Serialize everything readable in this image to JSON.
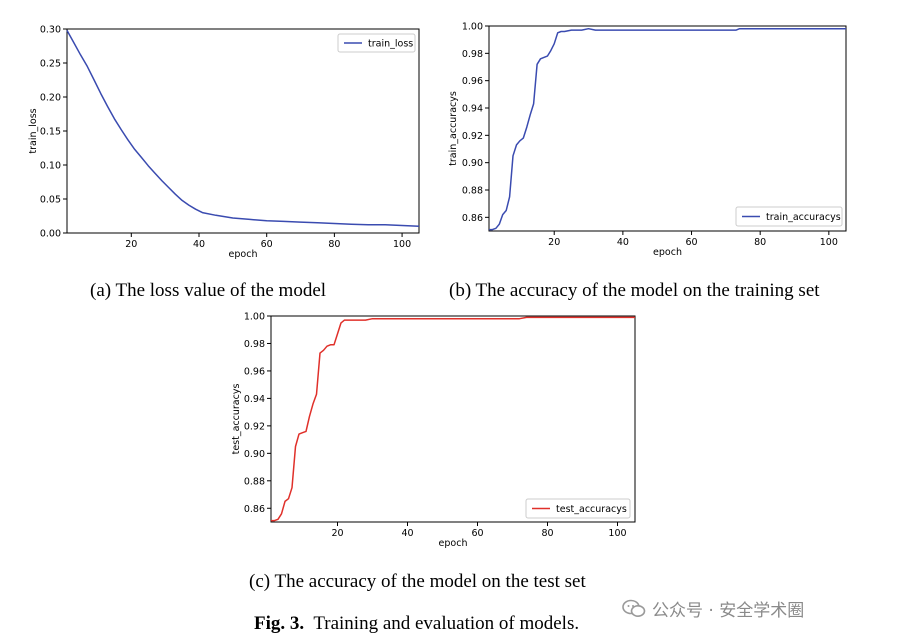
{
  "captions": {
    "a": "(a) The loss value of the model",
    "b": "(b) The accuracy of the model on the training set",
    "c": "(c) The accuracy of the model on the test set"
  },
  "figure_caption": {
    "label": "Fig. 3.",
    "text": "Training and evaluation of models."
  },
  "watermark": {
    "text": "公众号 · 安全学术圈",
    "icon": "wechat-icon"
  },
  "chart_data": [
    {
      "type": "line",
      "xlabel": "epoch",
      "ylabel": "train_loss",
      "xlim": [
        1,
        105
      ],
      "ylim": [
        0,
        0.3
      ],
      "xticks": [
        20,
        40,
        60,
        80,
        100
      ],
      "yticks": [
        0.0,
        0.05,
        0.1,
        0.15,
        0.2,
        0.25,
        0.3
      ],
      "ytick_labels": [
        "0.00",
        "0.05",
        "0.10",
        "0.15",
        "0.20",
        "0.25",
        "0.30"
      ],
      "legend": "top-right",
      "grid": false,
      "series": [
        {
          "name": "train_loss",
          "color": "#3a4bb0",
          "x": [
            1,
            3,
            5,
            7,
            9,
            11,
            13,
            15,
            17,
            19,
            21,
            23,
            25,
            27,
            29,
            31,
            33,
            35,
            37,
            39,
            41,
            45,
            50,
            55,
            60,
            65,
            70,
            75,
            80,
            85,
            90,
            95,
            100,
            105
          ],
          "y": [
            0.298,
            0.28,
            0.262,
            0.245,
            0.225,
            0.205,
            0.186,
            0.168,
            0.152,
            0.137,
            0.123,
            0.111,
            0.099,
            0.088,
            0.077,
            0.067,
            0.057,
            0.048,
            0.041,
            0.035,
            0.03,
            0.026,
            0.022,
            0.02,
            0.018,
            0.017,
            0.016,
            0.015,
            0.014,
            0.013,
            0.012,
            0.012,
            0.011,
            0.01
          ]
        }
      ]
    },
    {
      "type": "line",
      "xlabel": "epoch",
      "ylabel": "train_accuracys",
      "xlim": [
        1,
        105
      ],
      "ylim": [
        0.85,
        1.0
      ],
      "xticks": [
        20,
        40,
        60,
        80,
        100
      ],
      "yticks": [
        0.86,
        0.88,
        0.9,
        0.92,
        0.94,
        0.96,
        0.98,
        1.0
      ],
      "ytick_labels": [
        "0.86",
        "0.88",
        "0.90",
        "0.92",
        "0.94",
        "0.96",
        "0.98",
        "1.00"
      ],
      "legend": "bottom-right",
      "grid": false,
      "series": [
        {
          "name": "train_accuracys",
          "color": "#3a4bb0",
          "x": [
            1,
            2,
            3,
            4,
            5,
            6,
            7,
            8,
            9,
            10,
            11,
            12,
            13,
            14,
            15,
            16,
            17,
            18,
            19,
            20,
            21,
            22,
            23,
            25,
            28,
            30,
            32,
            40,
            50,
            60,
            70,
            73,
            74,
            80,
            90,
            100,
            105
          ],
          "y": [
            0.851,
            0.851,
            0.852,
            0.855,
            0.862,
            0.865,
            0.875,
            0.905,
            0.913,
            0.916,
            0.918,
            0.926,
            0.935,
            0.943,
            0.972,
            0.976,
            0.977,
            0.978,
            0.982,
            0.987,
            0.995,
            0.996,
            0.996,
            0.997,
            0.997,
            0.998,
            0.997,
            0.997,
            0.997,
            0.997,
            0.997,
            0.997,
            0.998,
            0.998,
            0.998,
            0.998,
            0.998
          ]
        }
      ]
    },
    {
      "type": "line",
      "xlabel": "epoch",
      "ylabel": "test_accuracys",
      "xlim": [
        1,
        105
      ],
      "ylim": [
        0.85,
        1.0
      ],
      "xticks": [
        20,
        40,
        60,
        80,
        100
      ],
      "yticks": [
        0.86,
        0.88,
        0.9,
        0.92,
        0.94,
        0.96,
        0.98,
        1.0
      ],
      "ytick_labels": [
        "0.86",
        "0.88",
        "0.90",
        "0.92",
        "0.94",
        "0.96",
        "0.98",
        "1.00"
      ],
      "legend": "bottom-right",
      "grid": false,
      "series": [
        {
          "name": "test_accuracys",
          "color": "#e0302a",
          "x": [
            1,
            2,
            3,
            4,
            5,
            6,
            7,
            8,
            9,
            10,
            11,
            12,
            13,
            14,
            15,
            16,
            17,
            18,
            19,
            20,
            21,
            22,
            23,
            25,
            28,
            30,
            32,
            40,
            50,
            60,
            70,
            72,
            74,
            76,
            80,
            90,
            100,
            105
          ],
          "y": [
            0.851,
            0.851,
            0.852,
            0.856,
            0.865,
            0.867,
            0.875,
            0.905,
            0.914,
            0.915,
            0.916,
            0.927,
            0.936,
            0.943,
            0.973,
            0.975,
            0.978,
            0.979,
            0.979,
            0.987,
            0.995,
            0.997,
            0.997,
            0.997,
            0.997,
            0.998,
            0.998,
            0.998,
            0.998,
            0.998,
            0.998,
            0.998,
            0.999,
            0.999,
            0.999,
            0.999,
            0.999,
            0.999
          ]
        }
      ]
    }
  ]
}
